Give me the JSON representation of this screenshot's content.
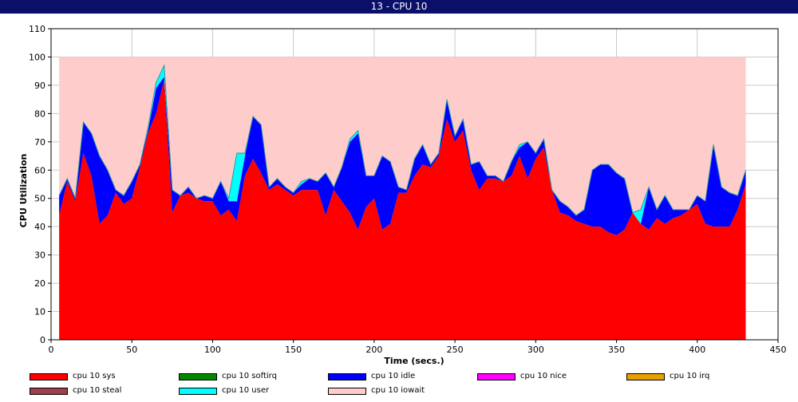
{
  "window": {
    "title": "13 - CPU 10"
  },
  "chart_data": {
    "type": "area",
    "title": "13 - CPU 10",
    "xlabel": "Time (secs.)",
    "ylabel": "CPU Utilization",
    "xlim": [
      0,
      450
    ],
    "ylim": [
      0,
      110
    ],
    "xticks": [
      0,
      50,
      100,
      150,
      200,
      250,
      300,
      350,
      400,
      450
    ],
    "yticks": [
      0,
      10,
      20,
      30,
      40,
      50,
      60,
      70,
      80,
      90,
      100,
      110
    ],
    "grid": true,
    "stacked": true,
    "legend_position": "bottom",
    "x": [
      5,
      10,
      15,
      20,
      25,
      30,
      35,
      40,
      45,
      50,
      55,
      60,
      65,
      70,
      75,
      80,
      85,
      90,
      95,
      100,
      105,
      110,
      115,
      120,
      125,
      130,
      135,
      140,
      145,
      150,
      155,
      160,
      165,
      170,
      175,
      180,
      185,
      190,
      195,
      200,
      205,
      210,
      215,
      220,
      225,
      230,
      235,
      240,
      245,
      250,
      255,
      260,
      265,
      270,
      275,
      280,
      285,
      290,
      295,
      300,
      305,
      310,
      315,
      320,
      325,
      330,
      335,
      340,
      345,
      350,
      355,
      360,
      365,
      370,
      375,
      380,
      385,
      390,
      395,
      400,
      405,
      410,
      415,
      420,
      425,
      430
    ],
    "series": [
      {
        "name": "cpu 10 sys",
        "color": "#ff0000",
        "values": [
          44,
          56,
          49,
          66,
          58,
          41,
          44,
          52,
          48,
          50,
          61,
          73,
          80,
          92,
          45,
          51,
          52,
          50,
          49,
          49,
          44,
          46,
          42,
          58,
          64,
          59,
          53,
          55,
          53,
          51,
          53,
          53,
          53,
          44,
          53,
          49,
          45,
          39,
          47,
          50,
          39,
          41,
          52,
          52,
          58,
          62,
          61,
          65,
          78,
          70,
          74,
          60,
          53,
          57,
          57,
          56,
          58,
          65,
          57,
          64,
          68,
          53,
          45,
          44,
          42,
          41,
          40,
          40,
          38,
          37,
          39,
          45,
          41,
          39,
          43,
          41,
          43,
          44,
          46,
          48,
          41,
          40,
          40,
          40,
          46,
          55
        ]
      },
      {
        "name": "cpu 10 softirq",
        "color": "#008800",
        "values": [
          0,
          0,
          0,
          0,
          0,
          0,
          0,
          0,
          0,
          0,
          0,
          0,
          0,
          0,
          0,
          0,
          0,
          0,
          0,
          0,
          0,
          0,
          0,
          0,
          0,
          0,
          0,
          0,
          0,
          0,
          0,
          0,
          0,
          0,
          0,
          0,
          0,
          0,
          0,
          0,
          0,
          0,
          0,
          0,
          0,
          0,
          0,
          0,
          0,
          0,
          0,
          0,
          0,
          0,
          0,
          0,
          0,
          0,
          0,
          0,
          0,
          0,
          0,
          0,
          0,
          0,
          0,
          0,
          0,
          0,
          0,
          0,
          0,
          0,
          0,
          0,
          0,
          0,
          0,
          0,
          0,
          0,
          0,
          0,
          0,
          0
        ]
      },
      {
        "name": "cpu 10 idle",
        "color": "#0000ff",
        "values": [
          7,
          1,
          1,
          11,
          15,
          24,
          16,
          1,
          3,
          6,
          1,
          1,
          9,
          1,
          8,
          0,
          2,
          0,
          2,
          1,
          12,
          3,
          7,
          7,
          15,
          17,
          1,
          2,
          1,
          1,
          2,
          4,
          3,
          15,
          1,
          12,
          25,
          34,
          11,
          8,
          26,
          22,
          2,
          1,
          6,
          7,
          1,
          1,
          7,
          2,
          4,
          2,
          10,
          1,
          1,
          0,
          5,
          3,
          13,
          2,
          3,
          0,
          4,
          3,
          2,
          5,
          20,
          22,
          24,
          22,
          18,
          0,
          0,
          15,
          3,
          10,
          3,
          2,
          0,
          3,
          8,
          29,
          14,
          12,
          5,
          5
        ]
      },
      {
        "name": "cpu 10 nice",
        "color": "#ff00ff",
        "values": [
          0,
          0,
          0,
          0,
          0,
          0,
          0,
          0,
          0,
          0,
          0,
          0,
          0,
          0,
          0,
          0,
          0,
          0,
          0,
          0,
          0,
          0,
          0,
          0,
          0,
          0,
          0,
          0,
          0,
          0,
          0,
          0,
          0,
          0,
          0,
          0,
          0,
          0,
          0,
          0,
          0,
          0,
          0,
          0,
          0,
          0,
          0,
          0,
          0,
          0,
          0,
          0,
          0,
          0,
          0,
          0,
          0,
          0,
          0,
          0,
          0,
          0,
          0,
          0,
          0,
          0,
          0,
          0,
          0,
          0,
          0,
          0,
          0,
          0,
          0,
          0,
          0,
          0,
          0,
          0,
          0,
          0,
          0,
          0,
          0,
          0
        ]
      },
      {
        "name": "cpu 10 irq",
        "color": "#e8a000",
        "values": [
          0,
          0,
          0,
          0,
          0,
          0,
          0,
          0,
          0,
          0,
          0,
          0,
          0,
          0,
          0,
          0,
          0,
          0,
          0,
          0,
          0,
          0,
          0,
          0,
          0,
          0,
          0,
          0,
          0,
          0,
          0,
          0,
          0,
          0,
          0,
          0,
          0,
          0,
          0,
          0,
          0,
          0,
          0,
          0,
          0,
          0,
          0,
          0,
          0,
          0,
          0,
          0,
          0,
          0,
          0,
          0,
          0,
          0,
          0,
          0,
          0,
          0,
          0,
          0,
          0,
          0,
          0,
          0,
          0,
          0,
          0,
          0,
          0,
          0,
          0,
          0,
          0,
          0,
          0,
          0,
          0,
          0,
          0,
          0,
          0,
          0
        ]
      },
      {
        "name": "cpu 10 steal",
        "color": "#a0404a",
        "values": [
          0,
          0,
          0,
          0,
          0,
          0,
          0,
          0,
          0,
          0,
          0,
          0,
          0,
          0,
          0,
          0,
          0,
          0,
          0,
          0,
          0,
          0,
          0,
          0,
          0,
          0,
          0,
          0,
          0,
          0,
          0,
          0,
          0,
          0,
          0,
          0,
          0,
          0,
          0,
          0,
          0,
          0,
          0,
          0,
          0,
          0,
          0,
          0,
          0,
          0,
          0,
          0,
          0,
          0,
          0,
          0,
          0,
          0,
          0,
          0,
          0,
          0,
          0,
          0,
          0,
          0,
          0,
          0,
          0,
          0,
          0,
          0,
          0,
          0,
          0,
          0,
          0,
          0,
          0,
          0,
          0,
          0,
          0,
          0,
          0,
          0
        ]
      },
      {
        "name": "cpu 10 user",
        "color": "#00ffff",
        "values": [
          0,
          0,
          0,
          0,
          0,
          0,
          0,
          0,
          0,
          0,
          0,
          1,
          2,
          4,
          0,
          0,
          0,
          0,
          0,
          0,
          0,
          1,
          17,
          1,
          0,
          0,
          0,
          0,
          0,
          0,
          1,
          0,
          0,
          0,
          0,
          0,
          1,
          1,
          0,
          0,
          0,
          0,
          0,
          0,
          0,
          0,
          0,
          0,
          0,
          0,
          0,
          0,
          0,
          0,
          0,
          0,
          0,
          1,
          0,
          0,
          0,
          0,
          0,
          0,
          0,
          0,
          0,
          0,
          0,
          0,
          0,
          0,
          5,
          0,
          0,
          0,
          0,
          0,
          0,
          0,
          0,
          0,
          0,
          0,
          0,
          0
        ]
      },
      {
        "name": "cpu 10 iowait",
        "color": "#ffcccc",
        "values": [
          49,
          43,
          50,
          23,
          27,
          35,
          40,
          47,
          49,
          44,
          38,
          25,
          9,
          3,
          47,
          49,
          46,
          50,
          49,
          50,
          44,
          50,
          34,
          34,
          21,
          24,
          46,
          43,
          46,
          48,
          44,
          43,
          44,
          41,
          46,
          39,
          29,
          26,
          42,
          42,
          35,
          37,
          46,
          47,
          36,
          31,
          38,
          34,
          15,
          28,
          22,
          38,
          37,
          42,
          42,
          44,
          37,
          31,
          30,
          34,
          29,
          47,
          51,
          53,
          56,
          54,
          40,
          38,
          38,
          41,
          43,
          55,
          54,
          46,
          54,
          49,
          54,
          54,
          54,
          49,
          51,
          31,
          46,
          48,
          49,
          40
        ]
      }
    ]
  },
  "legend": {
    "items": [
      {
        "label": "cpu 10 sys",
        "color": "#ff0000"
      },
      {
        "label": "cpu 10 softirq",
        "color": "#008800"
      },
      {
        "label": "cpu 10 idle",
        "color": "#0000ff"
      },
      {
        "label": "cpu 10 nice",
        "color": "#ff00ff"
      },
      {
        "label": "cpu 10 irq",
        "color": "#e8a000"
      },
      {
        "label": "cpu 10 steal",
        "color": "#a0404a"
      },
      {
        "label": "cpu 10 user",
        "color": "#00ffff"
      },
      {
        "label": "cpu 10 iowait",
        "color": "#ffcccc"
      }
    ]
  }
}
